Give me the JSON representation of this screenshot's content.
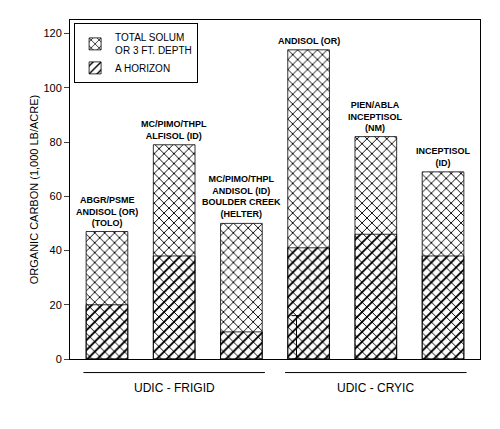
{
  "chart_data": {
    "type": "bar",
    "categories": [
      null,
      null,
      null,
      null,
      null,
      null
    ],
    "groups": [
      "UDIC - FRIGID",
      "UDIC - FRIGID",
      "UDIC - FRIGID",
      "UDIC - CRYIC",
      "UDIC - CRYIC",
      "UDIC - CRYIC"
    ],
    "series": [
      {
        "name": "TOTAL SOLUM\nOR 3 FT. DEPTH",
        "color": "#d8d4cc",
        "values": [
          47,
          79,
          50,
          114,
          82,
          69
        ]
      },
      {
        "name": "A HORIZON",
        "color": "#ffffff",
        "values": [
          20,
          38,
          10,
          41,
          46,
          38
        ]
      }
    ],
    "stacked": false,
    "bar_labels": [
      [
        "ABGR/PSME\nANDISOL (OR)\n(TOLO)"
      ],
      [
        "MC/PIMO/THPL\nALFISOL (ID)"
      ],
      [
        "MC/PIMO/THPL\nANDISOL (ID)\nBOULDER CREEK",
        "(HELTER)"
      ],
      [
        "ANDISOL (OR)"
      ],
      [
        "PIEN/ABLA",
        "INCEPTISOL\n(NM)"
      ],
      [
        "INCEPTISOL\n(ID)"
      ]
    ],
    "error_bar": {
      "center": 8,
      "half": 8
    },
    "ylabel": "ORGANIC CARBON (1,000 LB/ACRE)",
    "ylim": [
      0,
      125
    ],
    "yticks": [
      0,
      20,
      40,
      60,
      80,
      100,
      120
    ],
    "grid": false,
    "legend": "upper left",
    "tick_labels": "y"
  }
}
